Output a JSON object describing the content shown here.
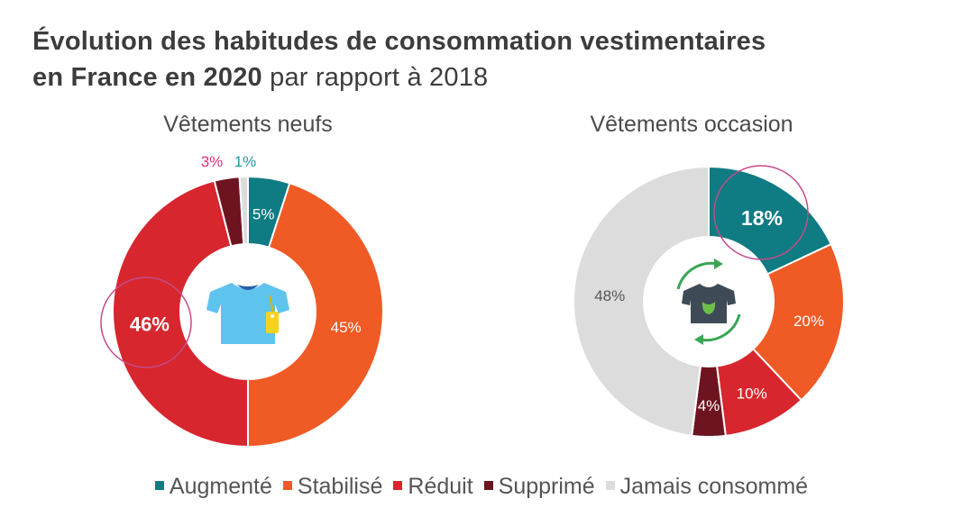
{
  "title": {
    "bold_part": "Évolution des habitudes de consommation vestimentaires",
    "line2_bold": "en France en 2020",
    "line2_regular": " par rapport à 2018"
  },
  "colors": {
    "Augmenté": "#0f7b83",
    "Stabilisé": "#ef5a25",
    "Réduit": "#d7262e",
    "Supprimé": "#6e1420",
    "Jamais consommé": "#dcdcdc",
    "highlight_ring": "#c44b8a"
  },
  "legend": [
    "Augmenté",
    "Stabilisé",
    "Réduit",
    "Supprimé",
    "Jamais consommé"
  ],
  "icons": {
    "new_clothes": "tshirt-with-tag-icon",
    "used_clothes": "recycled-tshirt-icon"
  },
  "chart_data": [
    {
      "type": "pie",
      "title": "Vêtements neufs",
      "categories": [
        "Augmenté",
        "Stabilisé",
        "Réduit",
        "Supprimé",
        "Jamais consommé"
      ],
      "values": [
        5,
        45,
        46,
        3,
        1
      ],
      "labels": [
        "5%",
        "45%",
        "46%",
        "3%",
        "1%"
      ],
      "highlighted": "Réduit"
    },
    {
      "type": "pie",
      "title": "Vêtements occasion",
      "categories": [
        "Augmenté",
        "Stabilisé",
        "Réduit",
        "Supprimé",
        "Jamais consommé"
      ],
      "values": [
        18,
        20,
        10,
        4,
        48
      ],
      "labels": [
        "18%",
        "20%",
        "10%",
        "4%",
        "48%"
      ],
      "highlighted": "Augmenté"
    }
  ]
}
